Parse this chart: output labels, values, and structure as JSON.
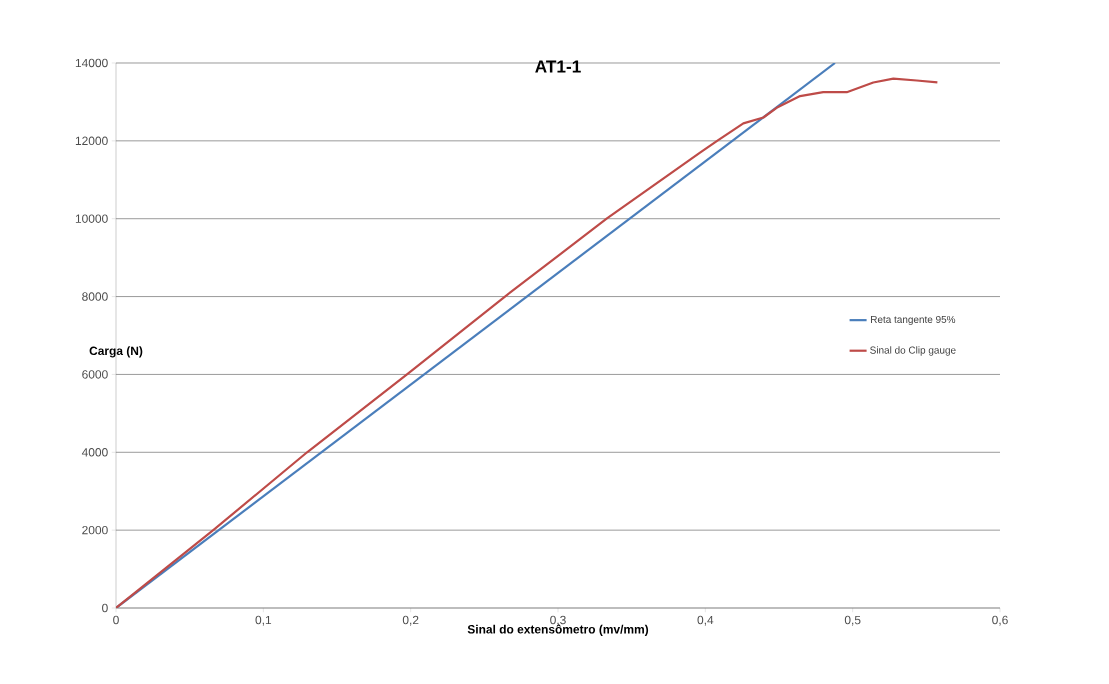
{
  "chart_data": {
    "type": "line",
    "title": "AT1-1",
    "xlabel": "Sinal do extensômetro (mv/mm)",
    "ylabel": "Carga (N)",
    "xlim": [
      0,
      0.6
    ],
    "ylim": [
      0,
      14000
    ],
    "xticks": [
      {
        "value": 0,
        "label": "0"
      },
      {
        "value": 0.1,
        "label": "0,1"
      },
      {
        "value": 0.2,
        "label": "0,2"
      },
      {
        "value": 0.3,
        "label": "0,3"
      },
      {
        "value": 0.4,
        "label": "0,4"
      },
      {
        "value": 0.5,
        "label": "0,5"
      },
      {
        "value": 0.6,
        "label": "0,6"
      }
    ],
    "yticks": [
      0,
      2000,
      4000,
      6000,
      8000,
      10000,
      12000,
      14000
    ],
    "grid": "y",
    "legend": "right",
    "marker": "none",
    "line_style": "solid",
    "series": [
      {
        "name": "Reta tangente 95%",
        "color": "#4a7ebb",
        "x": [
          0,
          0.488
        ],
        "values": [
          0,
          14000
        ]
      },
      {
        "name": "Sinal do Clip gauge",
        "color": "#be4b48",
        "x": [
          0,
          0.066,
          0.1297,
          0.1975,
          0.264,
          0.333,
          0.3964,
          0.408,
          0.4258,
          0.4394,
          0.4484,
          0.4643,
          0.48,
          0.496,
          0.514,
          0.5276,
          0.5435,
          0.5575
        ],
        "values": [
          0,
          2000,
          4000,
          6000,
          8000,
          10000,
          11700,
          12000,
          12450,
          12600,
          12850,
          13150,
          13250,
          13250,
          13500,
          13600,
          13550,
          13500
        ]
      }
    ]
  }
}
